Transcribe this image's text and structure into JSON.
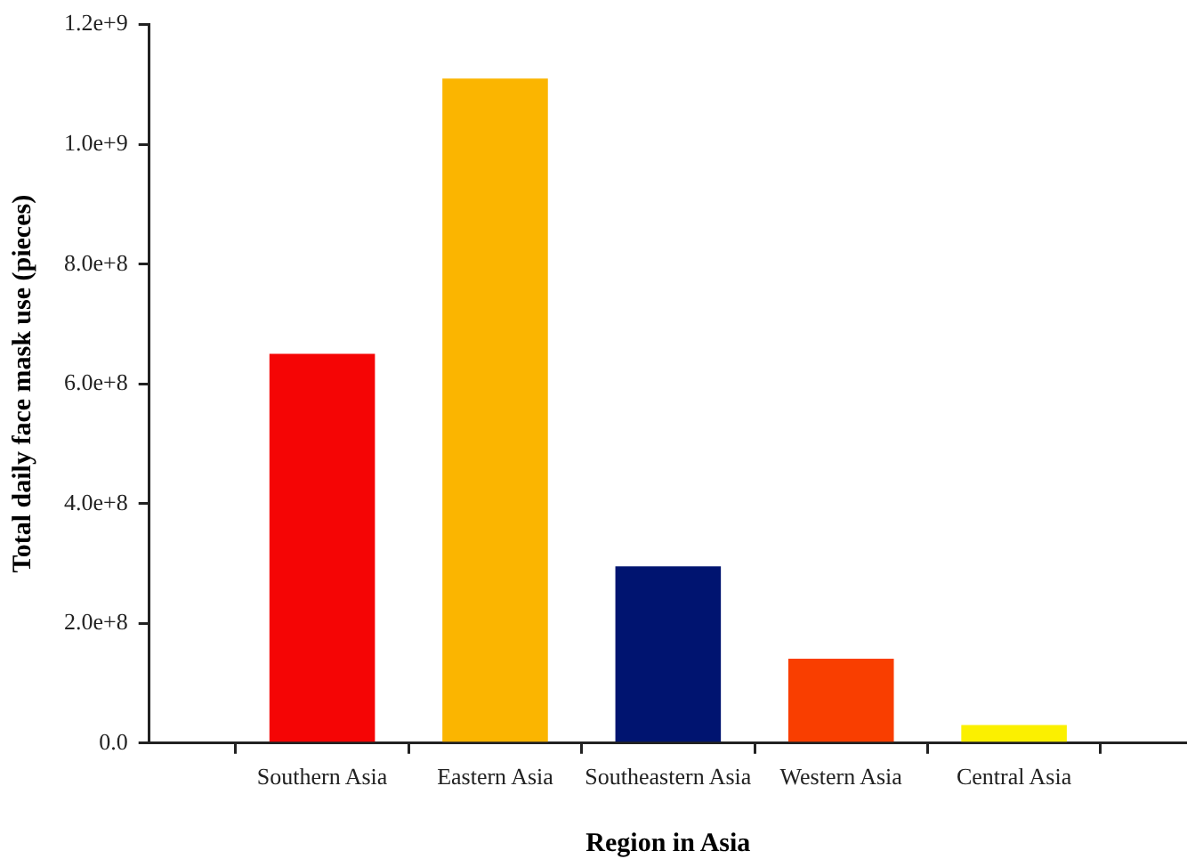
{
  "chart_data": {
    "type": "bar",
    "xlabel": "Region in Asia",
    "ylabel": "Total daily face mask use (pieces)",
    "categories": [
      "Southern Asia",
      "Eastern Asia",
      "Southeastern Asia",
      "Western Asia",
      "Central Asia"
    ],
    "values": [
      650000000,
      1110000000,
      295000000,
      141000000,
      30000000
    ],
    "colors": [
      "#f50505",
      "#fbb500",
      "#001470",
      "#f93e00",
      "#fbf000"
    ],
    "ylim": [
      0,
      1200000000
    ],
    "yticks": [
      {
        "value": 0,
        "label": "0.0"
      },
      {
        "value": 200000000,
        "label": "2.0e+8"
      },
      {
        "value": 400000000,
        "label": "4.0e+8"
      },
      {
        "value": 600000000,
        "label": "6.0e+8"
      },
      {
        "value": 800000000,
        "label": "8.0e+8"
      },
      {
        "value": 1000000000,
        "label": "1.0e+9"
      },
      {
        "value": 1200000000,
        "label": "1.2e+9"
      }
    ]
  }
}
